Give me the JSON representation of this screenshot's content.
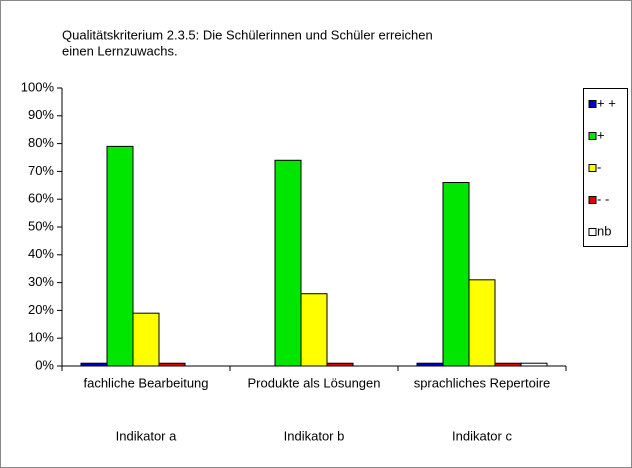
{
  "chart_data": {
    "type": "bar",
    "title": [
      "Qualitätskriterium 2.3.5: Die Schülerinnen und Schüler erreichen",
      "einen Lernzuwachs."
    ],
    "categories": [
      "fachliche Bearbeitung",
      "Produkte als Lösungen",
      "sprachliches Repertoire"
    ],
    "category_groups": [
      "Indikator a",
      "Indikator b",
      "Indikator c"
    ],
    "series": [
      {
        "name": "+ +",
        "color": "#0000cc",
        "values": [
          1,
          0,
          1
        ]
      },
      {
        "name": "+",
        "color": "#00e600",
        "values": [
          79,
          74,
          66
        ]
      },
      {
        "name": "-",
        "color": "#ffff00",
        "values": [
          19,
          26,
          31
        ]
      },
      {
        "name": "- -",
        "color": "#e60000",
        "values": [
          1,
          1,
          1
        ]
      },
      {
        "name": "nb",
        "color": "#ffffff",
        "values": [
          0,
          0,
          1
        ]
      }
    ],
    "ylim": [
      0,
      100
    ],
    "yticks": [
      {
        "value": 0,
        "label": "0%"
      },
      {
        "value": 10,
        "label": "10%"
      },
      {
        "value": 20,
        "label": "20%"
      },
      {
        "value": 30,
        "label": "30%"
      },
      {
        "value": 40,
        "label": "40%"
      },
      {
        "value": 50,
        "label": "50%"
      },
      {
        "value": 60,
        "label": "60%"
      },
      {
        "value": 70,
        "label": "70%"
      },
      {
        "value": 80,
        "label": "80%"
      },
      {
        "value": 90,
        "label": "90%"
      },
      {
        "value": 100,
        "label": "100%"
      }
    ],
    "grid": false,
    "legend": "right"
  }
}
